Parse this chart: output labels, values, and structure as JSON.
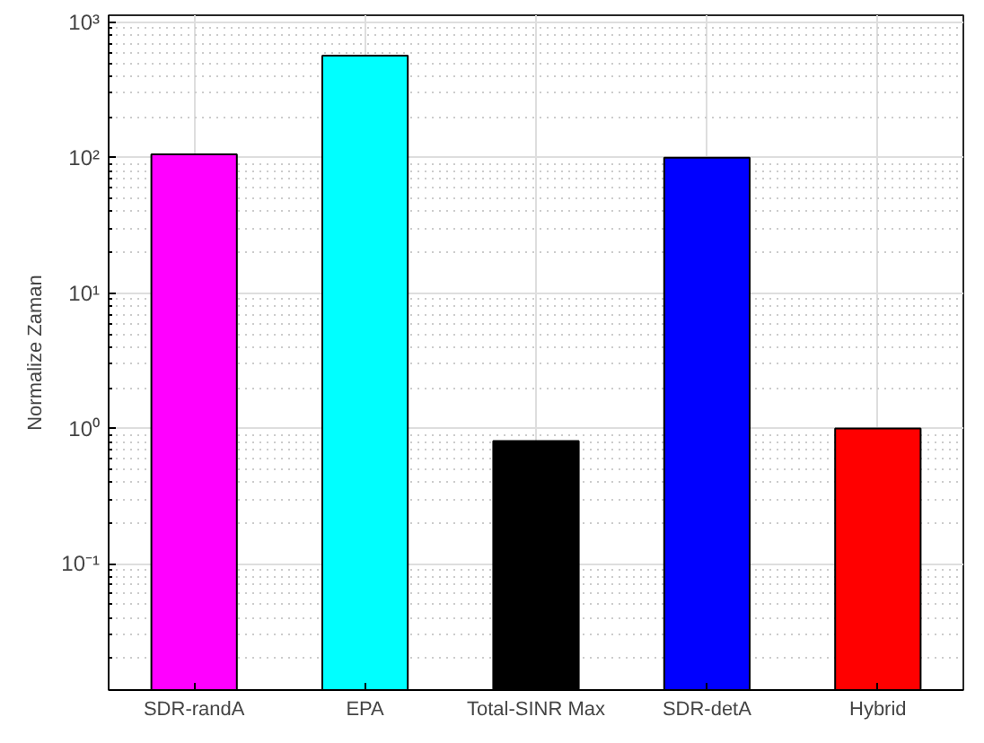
{
  "chart_data": {
    "type": "bar",
    "ylabel": "Normalize Zaman",
    "categories": [
      "SDR-randA",
      "EPA",
      "Total-SINR Max",
      "SDR-detA",
      "Hybrid"
    ],
    "values": [
      106,
      569,
      0.81,
      100,
      1.0
    ],
    "colors": [
      "#ff00ff",
      "#00ffff",
      "#000000",
      "#0000ff",
      "#ff0000"
    ],
    "log": "y",
    "ylim": [
      0.0117,
      1130
    ],
    "yticks": [
      {
        "value": 0.1,
        "label": "10⁻¹"
      },
      {
        "value": 1,
        "label": "10⁰"
      },
      {
        "value": 10,
        "label": "10¹"
      },
      {
        "value": 100,
        "label": "10²"
      },
      {
        "value": 1000,
        "label": "10³"
      }
    ],
    "grid": true
  }
}
